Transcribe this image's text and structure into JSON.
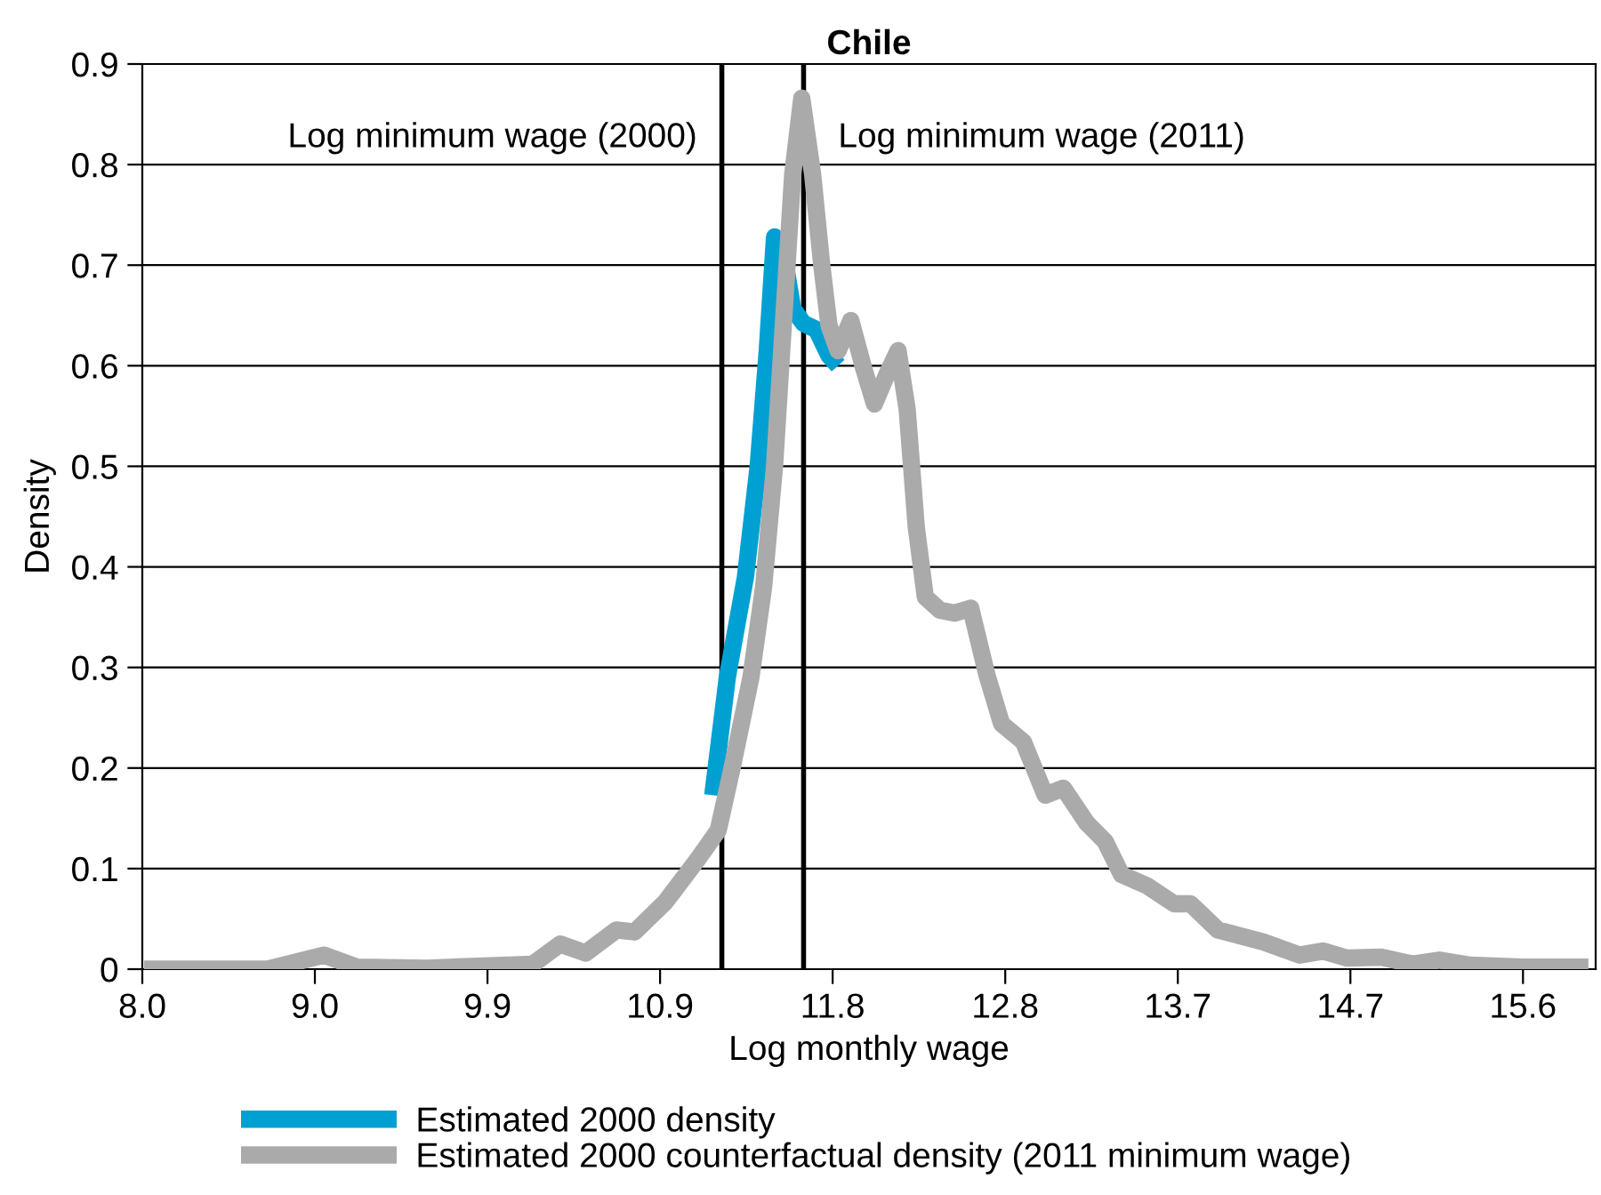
{
  "chart_data": {
    "type": "line",
    "title": "Chile",
    "xlabel": "Log monthly wage",
    "ylabel": "Density",
    "xlim": [
      8.0,
      16.0
    ],
    "ylim": [
      0,
      0.9
    ],
    "xticks": [
      {
        "value": 8.0,
        "label": "8.0"
      },
      {
        "value": 8.95,
        "label": "9.0"
      },
      {
        "value": 9.9,
        "label": "9.9"
      },
      {
        "value": 10.85,
        "label": "10.9"
      },
      {
        "value": 11.8,
        "label": "11.8"
      },
      {
        "value": 12.75,
        "label": "12.8"
      },
      {
        "value": 13.7,
        "label": "13.7"
      },
      {
        "value": 14.65,
        "label": "14.7"
      },
      {
        "value": 15.6,
        "label": "15.6"
      }
    ],
    "yticks": [
      0,
      0.1,
      0.2,
      0.3,
      0.4,
      0.5,
      0.6,
      0.7,
      0.8,
      0.9
    ],
    "grid": "y",
    "legend": "bottom",
    "line_style": "solid",
    "marker": "none",
    "ref_lines": [
      {
        "axis": "x",
        "value": 11.19,
        "label": "Log minimum wage (2000)",
        "color": "#000000"
      },
      {
        "axis": "x",
        "value": 11.64,
        "label": "Log minimum wage (2011)",
        "color": "#000000"
      }
    ],
    "series": [
      {
        "name": "Estimated 2000 density",
        "color": "#00a0d2",
        "x": [
          11.14,
          11.22,
          11.32,
          11.39,
          11.44,
          11.47,
          11.48,
          11.54,
          11.58,
          11.64,
          11.71,
          11.78,
          11.83
        ],
        "values": [
          0.173,
          0.29,
          0.39,
          0.5,
          0.615,
          0.7,
          0.728,
          0.7,
          0.657,
          0.642,
          0.636,
          0.61,
          0.6
        ]
      },
      {
        "name": "Estimated 2000 counterfactual density (2011 minimum wage)",
        "color": "#aaaaaa",
        "x": [
          8.01,
          8.69,
          9.0,
          9.18,
          9.57,
          10.15,
          10.3,
          10.44,
          10.61,
          10.71,
          10.88,
          11.06,
          11.17,
          11.25,
          11.35,
          11.42,
          11.48,
          11.53,
          11.58,
          11.63,
          11.69,
          11.74,
          11.78,
          11.83,
          11.9,
          11.97,
          12.03,
          12.1,
          12.16,
          12.21,
          12.26,
          12.31,
          12.39,
          12.47,
          12.56,
          12.65,
          12.73,
          12.85,
          12.97,
          13.07,
          13.2,
          13.3,
          13.39,
          13.53,
          13.68,
          13.77,
          13.92,
          14.17,
          14.37,
          14.5,
          14.63,
          14.82,
          14.99,
          15.14,
          15.31,
          15.6,
          15.96
        ],
        "values": [
          0.0,
          0.0,
          0.014,
          0.002,
          0.001,
          0.005,
          0.025,
          0.016,
          0.039,
          0.037,
          0.067,
          0.11,
          0.138,
          0.203,
          0.29,
          0.38,
          0.5,
          0.645,
          0.79,
          0.866,
          0.79,
          0.7,
          0.64,
          0.615,
          0.645,
          0.598,
          0.562,
          0.592,
          0.615,
          0.557,
          0.44,
          0.37,
          0.357,
          0.354,
          0.359,
          0.292,
          0.244,
          0.226,
          0.173,
          0.18,
          0.145,
          0.127,
          0.094,
          0.083,
          0.065,
          0.065,
          0.039,
          0.027,
          0.014,
          0.018,
          0.011,
          0.012,
          0.005,
          0.009,
          0.004,
          0.002,
          0.002
        ]
      }
    ]
  }
}
